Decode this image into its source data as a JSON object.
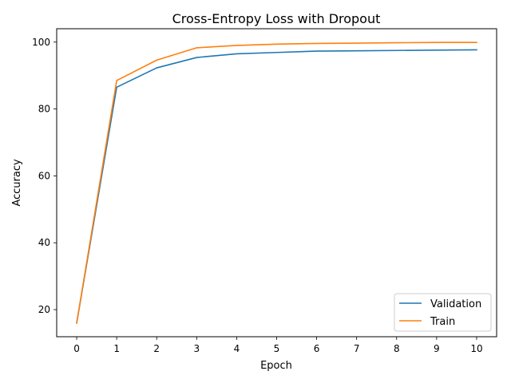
{
  "chart_data": {
    "type": "line",
    "title": "Cross-Entropy Loss with Dropout",
    "xlabel": "Epoch",
    "ylabel": "Accuracy",
    "x": [
      0,
      1,
      2,
      3,
      4,
      5,
      6,
      7,
      8,
      9,
      10
    ],
    "xlim": [
      -0.5,
      10.5
    ],
    "ylim": [
      11.9,
      104.0
    ],
    "xticks": [
      "0",
      "1",
      "2",
      "3",
      "4",
      "5",
      "6",
      "7",
      "8",
      "9",
      "10"
    ],
    "yticks": [
      20,
      40,
      60,
      80,
      100
    ],
    "grid": false,
    "legend_position": "lower right",
    "series": [
      {
        "name": "Validation",
        "color": "#1f77b4",
        "values": [
          16.0,
          86.5,
          92.3,
          95.4,
          96.5,
          96.9,
          97.3,
          97.4,
          97.5,
          97.6,
          97.7
        ]
      },
      {
        "name": "Train",
        "color": "#ff7f0e",
        "values": [
          16.0,
          88.5,
          94.6,
          98.3,
          99.0,
          99.4,
          99.6,
          99.7,
          99.8,
          99.9,
          99.9
        ]
      }
    ]
  }
}
